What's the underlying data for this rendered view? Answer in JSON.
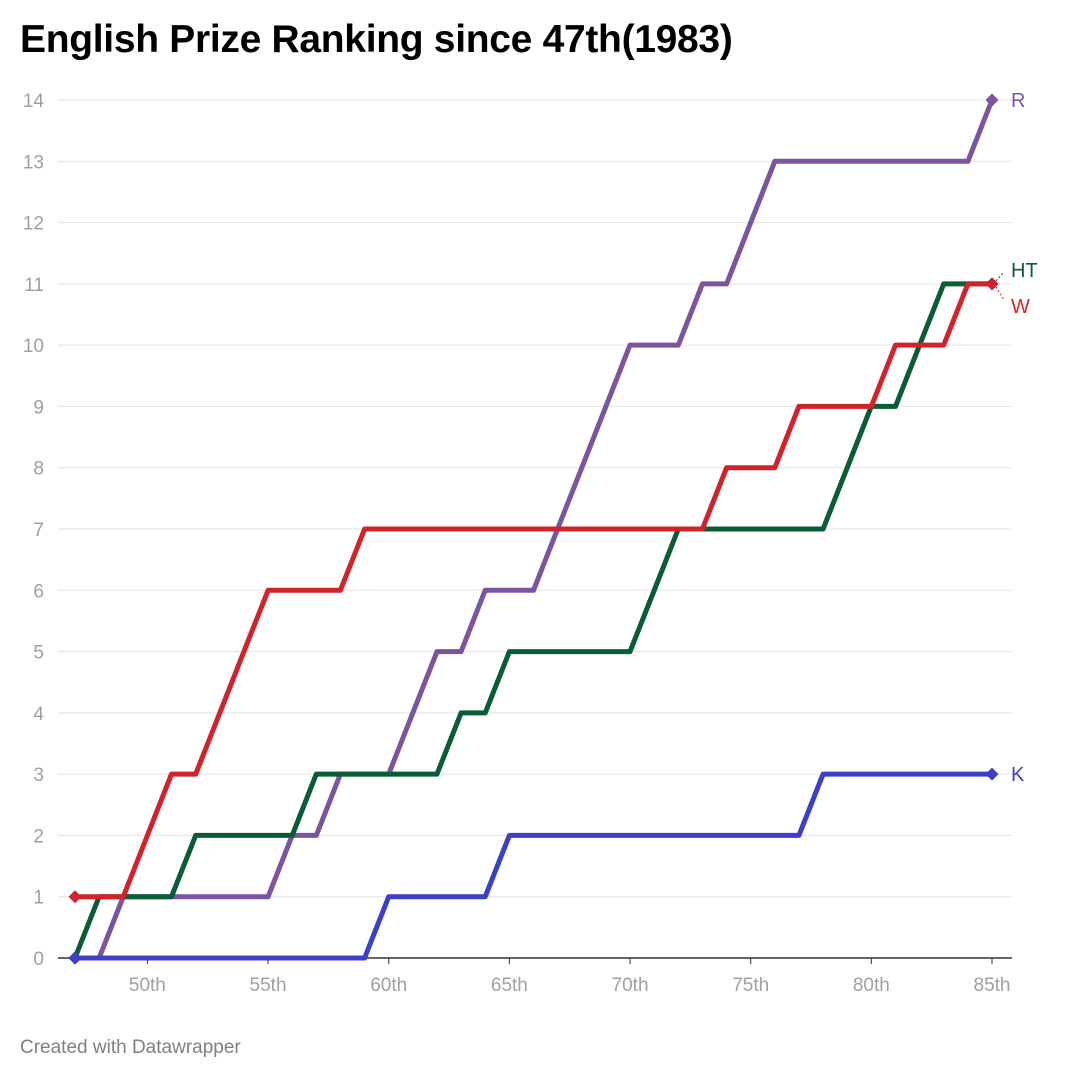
{
  "title": "English Prize Ranking since 47th(1983)",
  "footer": "Created with Datawrapper",
  "chart_data": {
    "type": "line",
    "title": "English Prize Ranking since 47th(1983)",
    "xlabel": "",
    "ylabel": "",
    "x_ticks": [
      "50th",
      "55th",
      "60th",
      "65th",
      "70th",
      "75th",
      "80th",
      "85th"
    ],
    "x_tick_values": [
      50,
      55,
      60,
      65,
      70,
      75,
      80,
      85
    ],
    "xlim": [
      47,
      85
    ],
    "ylim": [
      0,
      14
    ],
    "y_ticks": [
      0,
      1,
      2,
      3,
      4,
      5,
      6,
      7,
      8,
      9,
      10,
      11,
      12,
      13,
      14
    ],
    "grid": true,
    "legend": "direct labels at line ends",
    "series": [
      {
        "name": "R",
        "color": "#7b55a0",
        "points": [
          [
            47,
            0
          ],
          [
            48,
            0
          ],
          [
            49,
            1
          ],
          [
            55,
            1
          ],
          [
            56,
            2
          ],
          [
            57,
            2
          ],
          [
            58,
            3
          ],
          [
            59,
            3
          ],
          [
            60,
            3
          ],
          [
            61,
            4
          ],
          [
            62,
            5
          ],
          [
            63,
            5
          ],
          [
            64,
            6
          ],
          [
            66,
            6
          ],
          [
            67,
            7
          ],
          [
            68,
            8
          ],
          [
            69,
            9
          ],
          [
            70,
            10
          ],
          [
            72,
            10
          ],
          [
            73,
            11
          ],
          [
            74,
            11
          ],
          [
            75,
            12
          ],
          [
            76,
            13
          ],
          [
            84,
            13
          ],
          [
            85,
            14
          ]
        ]
      },
      {
        "name": "HT",
        "color": "#0a5c36",
        "points": [
          [
            47,
            0
          ],
          [
            48,
            1
          ],
          [
            51,
            1
          ],
          [
            52,
            2
          ],
          [
            56,
            2
          ],
          [
            57,
            3
          ],
          [
            62,
            3
          ],
          [
            63,
            4
          ],
          [
            64,
            4
          ],
          [
            65,
            5
          ],
          [
            70,
            5
          ],
          [
            71,
            6
          ],
          [
            72,
            7
          ],
          [
            78,
            7
          ],
          [
            79,
            8
          ],
          [
            80,
            9
          ],
          [
            81,
            9
          ],
          [
            82,
            10
          ],
          [
            83,
            11
          ],
          [
            85,
            11
          ]
        ]
      },
      {
        "name": "W",
        "color": "#d0232a",
        "points": [
          [
            47,
            1
          ],
          [
            48,
            1
          ],
          [
            49,
            1
          ],
          [
            50,
            2
          ],
          [
            51,
            3
          ],
          [
            52,
            3
          ],
          [
            53,
            4
          ],
          [
            54,
            5
          ],
          [
            55,
            6
          ],
          [
            58,
            6
          ],
          [
            59,
            7
          ],
          [
            73,
            7
          ],
          [
            74,
            8
          ],
          [
            76,
            8
          ],
          [
            77,
            9
          ],
          [
            80,
            9
          ],
          [
            81,
            10
          ],
          [
            82,
            10
          ],
          [
            83,
            10
          ],
          [
            84,
            11
          ],
          [
            85,
            11
          ]
        ]
      },
      {
        "name": "K",
        "color": "#3d3fc9",
        "points": [
          [
            47,
            0
          ],
          [
            59,
            0
          ],
          [
            60,
            1
          ],
          [
            64,
            1
          ],
          [
            65,
            2
          ],
          [
            77,
            2
          ],
          [
            78,
            3
          ],
          [
            85,
            3
          ]
        ]
      }
    ]
  }
}
